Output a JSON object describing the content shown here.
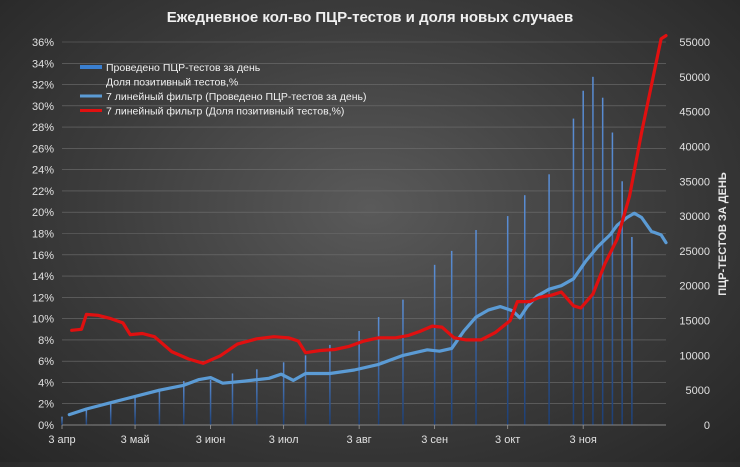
{
  "chart_data": {
    "type": "bar",
    "title": "Ежедневное кол-во ПЦР-тестов и доля новых случаев",
    "y2label": "ПЦР-ТЕСТОВ ЗА ДЕНЬ",
    "ylim": [
      0,
      36
    ],
    "y2lim": [
      0,
      55000
    ],
    "yticks": [
      "0%",
      "2%",
      "4%",
      "6%",
      "8%",
      "10%",
      "12%",
      "14%",
      "16%",
      "18%",
      "20%",
      "22%",
      "24%",
      "26%",
      "28%",
      "30%",
      "32%",
      "34%",
      "36%"
    ],
    "y2ticks": [
      "0",
      "5000",
      "10000",
      "15000",
      "20000",
      "25000",
      "30000",
      "35000",
      "40000",
      "45000",
      "50000",
      "55000"
    ],
    "xticks": [
      {
        "label": "3 апр",
        "day": 0
      },
      {
        "label": "3 май",
        "day": 30
      },
      {
        "label": "3 июн",
        "day": 61
      },
      {
        "label": "3 июл",
        "day": 91
      },
      {
        "label": "3 авг",
        "day": 122
      },
      {
        "label": "3 сен",
        "day": 153
      },
      {
        "label": "3 окт",
        "day": 183
      },
      {
        "label": "3 ноя",
        "day": 214
      }
    ],
    "legend": {
      "position": "top-left",
      "entries": [
        {
          "label": "Проведено ПЦР-тестов  за день",
          "kind": "bar",
          "color": "#3a7fd0"
        },
        {
          "label": "Доля позитивный  тестов,%",
          "kind": "none",
          "color": "#c00000"
        },
        {
          "label": "7 линейный фильтр (Проведено ПЦР-тестов  за день)",
          "kind": "line",
          "color": "#5b9bd5"
        },
        {
          "label": "7 линейный фильтр (Доля позитивный  тестов,%)",
          "kind": "line",
          "color": "#e01010"
        }
      ]
    },
    "series": [
      {
        "name": "Проведено ПЦР-тестов  за день",
        "axis": "y2",
        "kind": "bar",
        "color": "#3a7fd0",
        "days": [
          0,
          10,
          20,
          30,
          40,
          50,
          61,
          70,
          80,
          91,
          100,
          110,
          122,
          130,
          140,
          153,
          160,
          170,
          183,
          190,
          200,
          210,
          214,
          218,
          222,
          226,
          230,
          234
        ],
        "values": [
          1200,
          2200,
          3200,
          4200,
          5200,
          6300,
          6500,
          7400,
          8000,
          9000,
          10000,
          11500,
          13500,
          15500,
          18000,
          23000,
          25000,
          28000,
          30000,
          33000,
          36000,
          44000,
          48000,
          50000,
          47000,
          42000,
          35000,
          27000
        ]
      },
      {
        "name": "7 линейный фильтр (Проведено ПЦР-тестов  за день)",
        "axis": "y2",
        "kind": "line",
        "color": "#5b9bd5",
        "points": [
          [
            3,
            1500
          ],
          [
            10,
            2300
          ],
          [
            20,
            3200
          ],
          [
            30,
            4100
          ],
          [
            40,
            5000
          ],
          [
            50,
            5700
          ],
          [
            56,
            6500
          ],
          [
            61,
            6800
          ],
          [
            66,
            6000
          ],
          [
            75,
            6300
          ],
          [
            85,
            6700
          ],
          [
            90,
            7300
          ],
          [
            95,
            6400
          ],
          [
            100,
            7400
          ],
          [
            110,
            7400
          ],
          [
            120,
            7900
          ],
          [
            130,
            8700
          ],
          [
            140,
            10000
          ],
          [
            150,
            10800
          ],
          [
            155,
            10600
          ],
          [
            160,
            11000
          ],
          [
            165,
            13500
          ],
          [
            170,
            15500
          ],
          [
            175,
            16500
          ],
          [
            180,
            17000
          ],
          [
            185,
            16400
          ],
          [
            188,
            15400
          ],
          [
            191,
            17000
          ],
          [
            195,
            18500
          ],
          [
            200,
            19500
          ],
          [
            205,
            20000
          ],
          [
            210,
            21000
          ],
          [
            215,
            23500
          ],
          [
            220,
            25600
          ],
          [
            225,
            27300
          ],
          [
            228,
            28700
          ],
          [
            232,
            29800
          ],
          [
            235,
            30400
          ],
          [
            238,
            29800
          ],
          [
            242,
            27800
          ],
          [
            246,
            27300
          ],
          [
            248,
            26200
          ]
        ]
      },
      {
        "name": "7 линейный фильтр (Доля позитивный  тестов,%)",
        "axis": "y",
        "kind": "line",
        "color": "#e01010",
        "points": [
          [
            4,
            8.9
          ],
          [
            8,
            9.0
          ],
          [
            10,
            10.4
          ],
          [
            15,
            10.3
          ],
          [
            20,
            10.0
          ],
          [
            25,
            9.6
          ],
          [
            28,
            8.5
          ],
          [
            33,
            8.6
          ],
          [
            38,
            8.3
          ],
          [
            45,
            6.9
          ],
          [
            52,
            6.2
          ],
          [
            58,
            5.8
          ],
          [
            65,
            6.5
          ],
          [
            72,
            7.6
          ],
          [
            80,
            8.1
          ],
          [
            87,
            8.3
          ],
          [
            93,
            8.2
          ],
          [
            97,
            7.9
          ],
          [
            100,
            6.8
          ],
          [
            106,
            7.0
          ],
          [
            112,
            7.1
          ],
          [
            118,
            7.4
          ],
          [
            124,
            7.9
          ],
          [
            130,
            8.2
          ],
          [
            137,
            8.2
          ],
          [
            142,
            8.4
          ],
          [
            147,
            8.8
          ],
          [
            152,
            9.3
          ],
          [
            156,
            9.2
          ],
          [
            161,
            8.2
          ],
          [
            166,
            8.0
          ],
          [
            172,
            8.0
          ],
          [
            178,
            8.7
          ],
          [
            184,
            9.8
          ],
          [
            187,
            11.6
          ],
          [
            192,
            11.6
          ],
          [
            196,
            12.0
          ],
          [
            201,
            12.2
          ],
          [
            205,
            12.5
          ],
          [
            210,
            11.2
          ],
          [
            213,
            11.0
          ],
          [
            218,
            12.3
          ],
          [
            223,
            15.2
          ],
          [
            228,
            17.5
          ],
          [
            233,
            21.5
          ],
          [
            238,
            27.5
          ],
          [
            243,
            33.0
          ],
          [
            246,
            36.3
          ],
          [
            248,
            36.6
          ]
        ]
      }
    ]
  }
}
